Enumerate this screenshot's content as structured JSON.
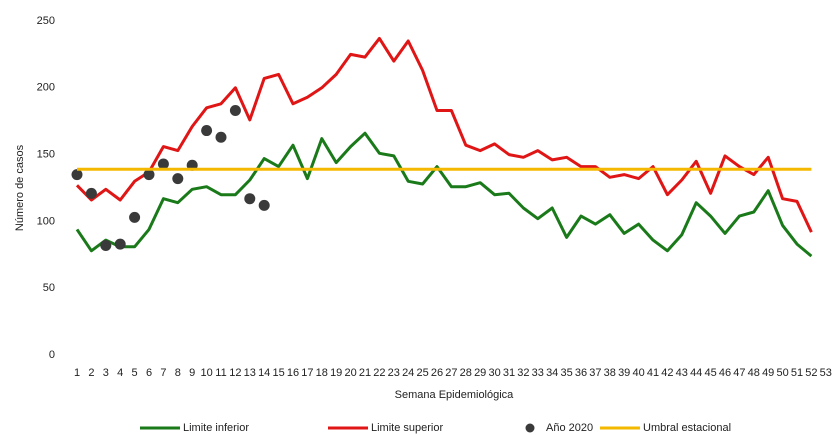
{
  "chart_data": {
    "type": "line",
    "y_label": "Número de casos",
    "x_label": "Semana Epidemiológica",
    "categories": [
      "1",
      "2",
      "3",
      "4",
      "5",
      "6",
      "7",
      "8",
      "9",
      "10",
      "11",
      "12",
      "13",
      "14",
      "15",
      "16",
      "17",
      "18",
      "19",
      "20",
      "21",
      "22",
      "23",
      "24",
      "25",
      "26",
      "27",
      "28",
      "29",
      "30",
      "31",
      "32",
      "33",
      "34",
      "35",
      "36",
      "37",
      "38",
      "39",
      "40",
      "41",
      "42",
      "43",
      "44",
      "45",
      "46",
      "47",
      "48",
      "49",
      "50",
      "51",
      "52",
      "53"
    ],
    "ylim": [
      0,
      250
    ],
    "yticks": [
      0,
      50,
      100,
      150,
      200,
      250
    ],
    "grid": false,
    "legend": "bottom",
    "series": [
      {
        "name": "Limite inferior",
        "color": "#1a7a1a",
        "type": "line",
        "values": [
          94,
          78,
          86,
          81,
          81,
          94,
          117,
          114,
          124,
          126,
          120,
          120,
          131,
          147,
          141,
          157,
          132,
          162,
          144,
          156,
          166,
          151,
          149,
          130,
          128,
          141,
          126,
          126,
          129,
          120,
          121,
          110,
          102,
          110,
          88,
          104,
          98,
          105,
          91,
          98,
          86,
          78,
          90,
          114,
          104,
          91,
          104,
          107,
          123,
          97,
          83,
          74,
          null
        ]
      },
      {
        "name": "Limite superior",
        "color": "#e01515",
        "type": "line",
        "values": [
          127,
          116,
          124,
          116,
          130,
          137,
          156,
          153,
          171,
          185,
          188,
          200,
          176,
          207,
          210,
          188,
          193,
          200,
          210,
          225,
          223,
          237,
          220,
          235,
          213,
          183,
          183,
          157,
          153,
          158,
          150,
          148,
          153,
          146,
          148,
          141,
          141,
          133,
          135,
          132,
          141,
          120,
          131,
          145,
          121,
          149,
          141,
          135,
          148,
          117,
          115,
          92,
          null
        ]
      },
      {
        "name": "Año 2020",
        "color": "#3a3a3a",
        "type": "scatter",
        "values": [
          135,
          121,
          82,
          83,
          103,
          135,
          143,
          132,
          142,
          168,
          163,
          183,
          117,
          112,
          null,
          null,
          null,
          null,
          null,
          null,
          null,
          null,
          null,
          null,
          null,
          null,
          null,
          null,
          null,
          null,
          null,
          null,
          null,
          null,
          null,
          null,
          null,
          null,
          null,
          null,
          null,
          null,
          null,
          null,
          null,
          null,
          null,
          null,
          null,
          null,
          null,
          null,
          null
        ]
      },
      {
        "name": "Umbral estacional",
        "color": "#f5b800",
        "type": "line",
        "values": [
          139,
          139,
          139,
          139,
          139,
          139,
          139,
          139,
          139,
          139,
          139,
          139,
          139,
          139,
          139,
          139,
          139,
          139,
          139,
          139,
          139,
          139,
          139,
          139,
          139,
          139,
          139,
          139,
          139,
          139,
          139,
          139,
          139,
          139,
          139,
          139,
          139,
          139,
          139,
          139,
          139,
          139,
          139,
          139,
          139,
          139,
          139,
          139,
          139,
          139,
          139,
          139,
          null
        ]
      }
    ]
  }
}
